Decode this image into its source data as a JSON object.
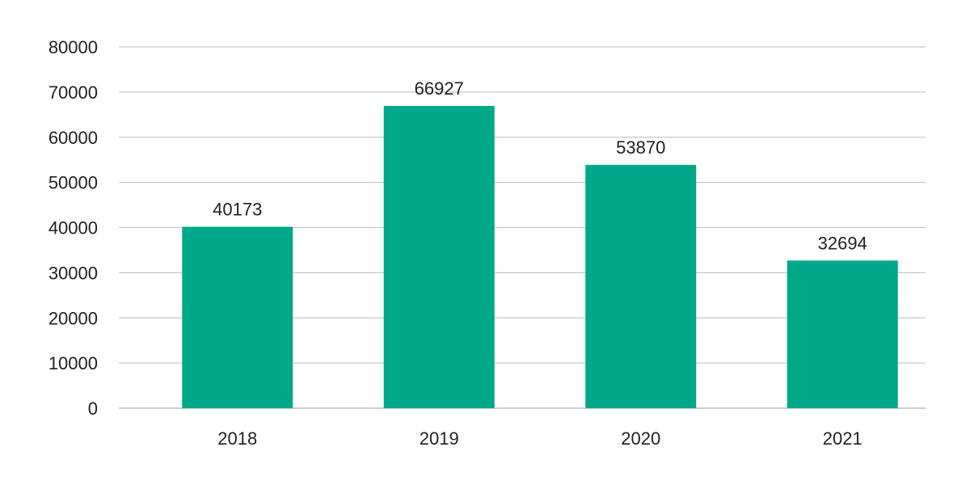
{
  "chart_data": {
    "type": "bar",
    "title": "",
    "xlabel": "",
    "ylabel": "",
    "categories": [
      "2018",
      "2019",
      "2020",
      "2021"
    ],
    "values": [
      40173,
      66927,
      53870,
      32694
    ],
    "data_labels": [
      "40173",
      "66927",
      "53870",
      "32694"
    ],
    "ylim": [
      0,
      80000
    ],
    "yticks": [
      0,
      10000,
      20000,
      30000,
      40000,
      50000,
      60000,
      70000,
      80000
    ],
    "ytick_labels": [
      "0",
      "10000",
      "20000",
      "30000",
      "40000",
      "50000",
      "60000",
      "70000",
      "80000"
    ],
    "grid": true,
    "legend": "none",
    "colors": {
      "bar": "#00a88a",
      "grid": "#c8c8c8",
      "text": "#222222"
    }
  }
}
